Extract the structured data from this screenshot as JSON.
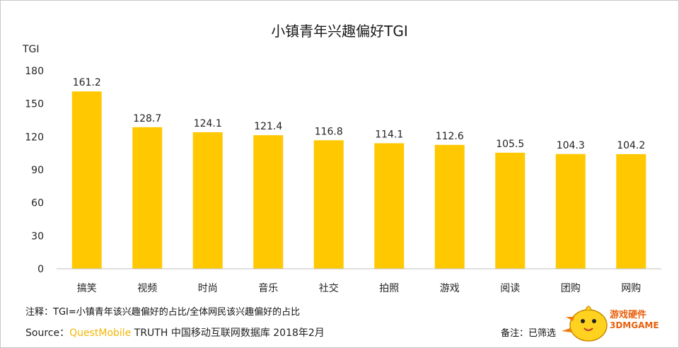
{
  "chart_data": {
    "type": "bar",
    "title": "小镇青年兴趣偏好TGI",
    "ylabel": "TGI",
    "xlabel": "",
    "ylim": [
      0,
      180
    ],
    "yticks": [
      0,
      30,
      60,
      90,
      120,
      150,
      180
    ],
    "grid": false,
    "bar_color": "#ffc800",
    "categories": [
      "搞笑",
      "视频",
      "时尚",
      "音乐",
      "社交",
      "拍照",
      "游戏",
      "阅读",
      "团购",
      "网购"
    ],
    "values": [
      161.2,
      128.7,
      124.1,
      121.4,
      116.8,
      114.1,
      112.6,
      105.5,
      104.3,
      104.2
    ],
    "data_labels": [
      "161.2",
      "128.7",
      "124.1",
      "121.4",
      "116.8",
      "114.1",
      "112.6",
      "105.5",
      "104.3",
      "104.2"
    ]
  },
  "footer": {
    "note": "注释：TGI=小镇青年该兴趣偏好的占比/全体网民该兴趣偏好的占比",
    "source_prefix": "Source：",
    "source_brand": "QuestMobile",
    "source_rest": " TRUTH 中国移动互联网数据库 2018年2月",
    "remark": "备注：已筛选",
    "brand_color": "#f2b705"
  },
  "watermark": {
    "line1": "游戏硬件",
    "line2": "3DMGAME",
    "icon": "chick-mascot-icon"
  }
}
